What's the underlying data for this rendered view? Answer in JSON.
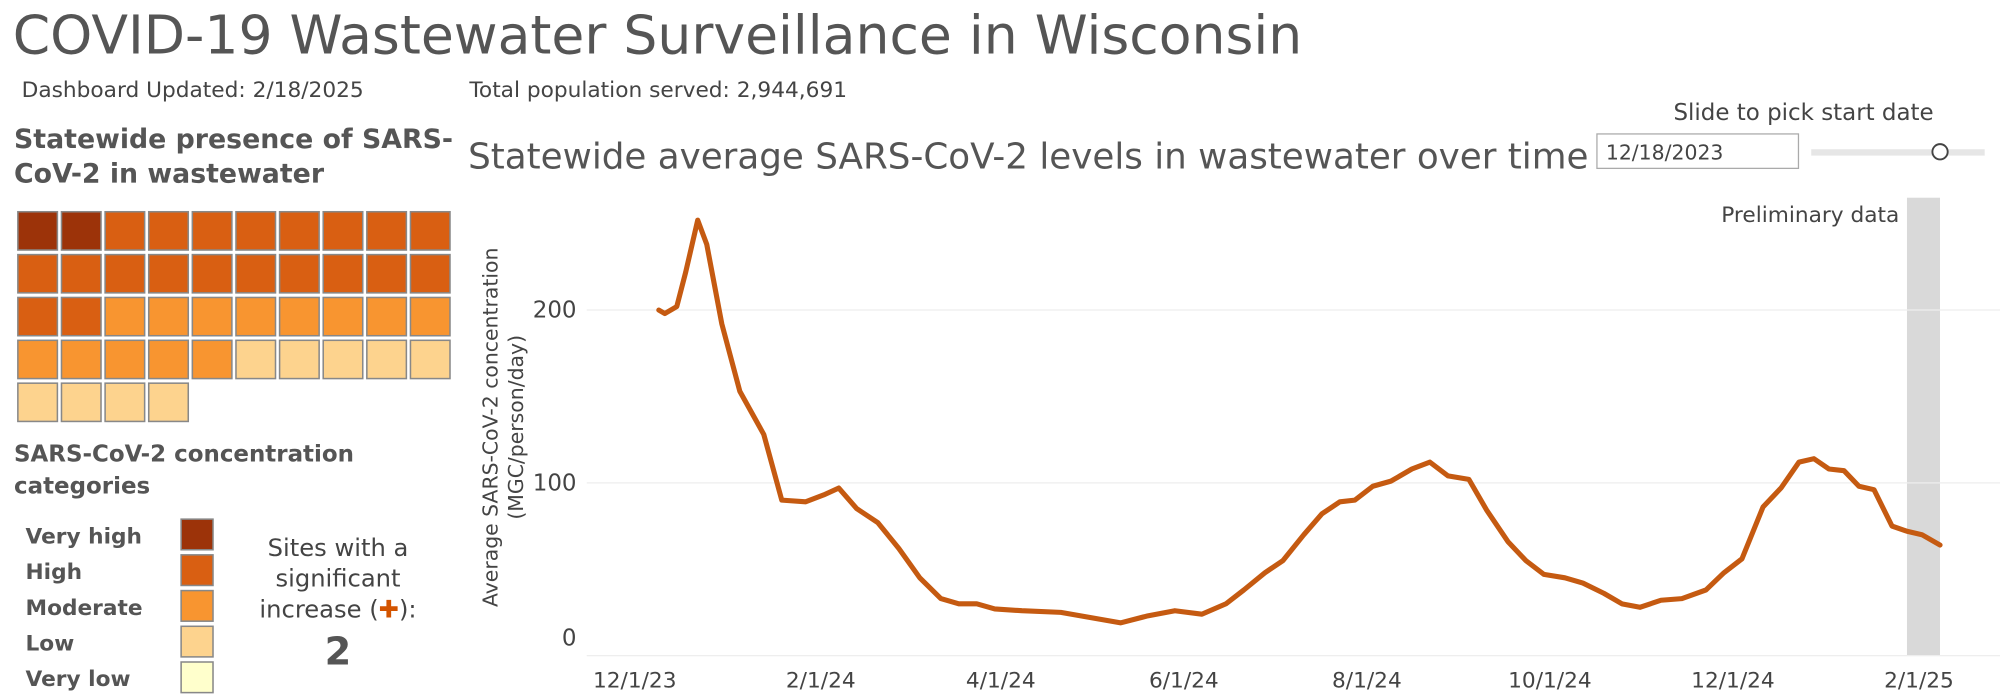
{
  "header": {
    "title": "COVID-19 Wastewater Surveillance in Wisconsin",
    "updated": "Dashboard Updated: 2/18/2025",
    "population": "Total population served: 2,944,691"
  },
  "waffle": {
    "type": "waffle",
    "title_lines": [
      "Statewide presence of SARS-",
      "CoV-2 in wastewater"
    ],
    "categories": [
      "Very high",
      "High",
      "Moderate",
      "Low",
      "Very low"
    ],
    "values": [
      2,
      20,
      13,
      9,
      0
    ],
    "colors": [
      "#9c3309",
      "#d95f12",
      "#f89530",
      "#fdd38e",
      "#ffffcc"
    ],
    "columns": 10
  },
  "legend": {
    "title_lines": [
      "SARS-CoV-2 concentration",
      "categories"
    ]
  },
  "sites": {
    "lines": [
      "Sites with a",
      "significant"
    ],
    "last_line": [
      "increase (",
      "✚",
      "):"
    ],
    "value": 2,
    "plus_color": "#d35400"
  },
  "slider": {
    "label": "Slide to pick start date",
    "value": "12/18/2023"
  },
  "chart_data": {
    "type": "line",
    "title": "Statewide average SARS-CoV-2 levels in wastewater over time",
    "y_label_lines": [
      "Average SARS-CoV-2 concentration",
      "(MGC/person/day)"
    ],
    "x": [
      "2023-12-09",
      "2023-12-11",
      "2023-12-15",
      "2023-12-18",
      "2023-12-22",
      "2023-12-25",
      "2023-12-30",
      "2024-01-05",
      "2024-01-13",
      "2024-01-19",
      "2024-01-27",
      "2024-02-02",
      "2024-02-07",
      "2024-02-13",
      "2024-02-20",
      "2024-02-27",
      "2024-03-05",
      "2024-03-12",
      "2024-03-18",
      "2024-03-24",
      "2024-03-30",
      "2024-04-08",
      "2024-04-21",
      "2024-05-01",
      "2024-05-11",
      "2024-05-20",
      "2024-05-29",
      "2024-06-07",
      "2024-06-15",
      "2024-06-21",
      "2024-06-28",
      "2024-07-04",
      "2024-07-11",
      "2024-07-17",
      "2024-07-23",
      "2024-07-28",
      "2024-08-03",
      "2024-08-09",
      "2024-08-16",
      "2024-08-22",
      "2024-08-28",
      "2024-09-04",
      "2024-09-10",
      "2024-09-17",
      "2024-09-23",
      "2024-09-29",
      "2024-10-06",
      "2024-10-12",
      "2024-10-19",
      "2024-10-25",
      "2024-10-31",
      "2024-11-07",
      "2024-11-14",
      "2024-11-22",
      "2024-11-28",
      "2024-12-04",
      "2024-12-11",
      "2024-12-17",
      "2024-12-23",
      "2024-12-28",
      "2025-01-02",
      "2025-01-07",
      "2025-01-12",
      "2025-01-17",
      "2025-01-23",
      "2025-01-28",
      "2025-02-02",
      "2025-02-08"
    ],
    "series": [
      {
        "color": "#c55a11",
        "values": [
          200,
          198,
          202,
          222,
          252,
          238,
          192,
          153,
          128,
          90,
          89,
          93,
          97,
          85,
          77,
          62,
          45,
          33,
          30,
          30,
          27,
          26,
          25,
          22,
          19,
          23,
          26,
          24,
          30,
          38,
          48,
          55,
          70,
          82,
          89,
          90,
          98,
          101,
          108,
          112,
          104,
          102,
          84,
          66,
          55,
          47,
          45,
          42,
          36,
          30,
          28,
          32,
          33,
          38,
          48,
          56,
          86,
          97,
          112,
          114,
          108,
          107,
          98,
          96,
          75,
          72,
          70,
          64
        ]
      }
    ],
    "xlim": [
      "2023-11-15",
      "2025-02-28"
    ],
    "xticks": [
      {
        "value": "2023-12-01",
        "label": "12/1/23"
      },
      {
        "value": "2024-02-01",
        "label": "2/1/24"
      },
      {
        "value": "2024-04-01",
        "label": "4/1/24"
      },
      {
        "value": "2024-06-01",
        "label": "6/1/24"
      },
      {
        "value": "2024-08-01",
        "label": "8/1/24"
      },
      {
        "value": "2024-10-01",
        "label": "10/1/24"
      },
      {
        "value": "2024-12-01",
        "label": "12/1/24"
      },
      {
        "value": "2025-02-01",
        "label": "2/1/25"
      }
    ],
    "ylim": [
      0,
      265
    ],
    "yticks": [
      0,
      100,
      200
    ],
    "grid": true,
    "annotation": "Preliminary data",
    "preliminary_range": [
      "2025-01-28",
      "2025-02-08"
    ]
  }
}
